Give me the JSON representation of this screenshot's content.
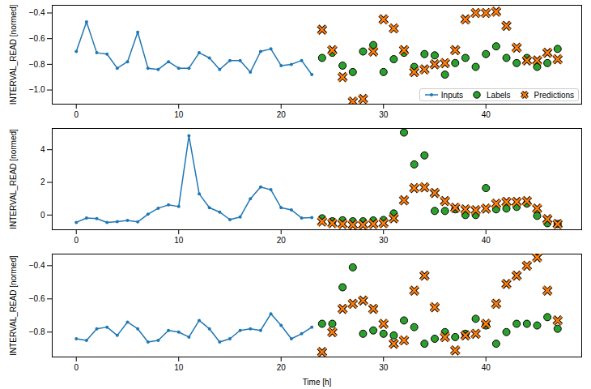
{
  "chart_data": [
    {
      "type": "line",
      "ylabel": "INTERVAL_READ [normed]",
      "x": [
        0,
        1,
        2,
        3,
        4,
        5,
        6,
        7,
        8,
        9,
        10,
        11,
        12,
        13,
        14,
        15,
        16,
        17,
        18,
        19,
        20,
        21,
        22,
        23,
        24,
        25,
        26,
        27,
        28,
        29,
        30,
        31,
        32,
        33,
        34,
        35,
        36,
        37,
        38,
        39,
        40,
        41,
        42,
        43,
        44,
        45,
        46,
        47
      ],
      "xlim": [
        -2.35,
        49.35
      ],
      "xticks": [
        0,
        10,
        20,
        30,
        40
      ],
      "ylim": [
        -1.11,
        -0.34
      ],
      "yticks": [
        {
          "value": -1.0,
          "label": "−1.0"
        },
        {
          "value": -0.8,
          "label": "−0.8"
        },
        {
          "value": -0.6,
          "label": "−0.6"
        },
        {
          "value": -0.4,
          "label": "−0.4"
        }
      ],
      "legend": "lower right",
      "series": [
        {
          "name": "Inputs",
          "type": "line",
          "color": "#1f77b4",
          "marker": "o",
          "line_style": "solid",
          "values": [
            -0.7,
            -0.47,
            -0.71,
            -0.72,
            -0.83,
            -0.78,
            -0.55,
            -0.83,
            -0.84,
            -0.78,
            -0.83,
            -0.83,
            -0.71,
            -0.75,
            -0.84,
            -0.77,
            -0.77,
            -0.86,
            -0.7,
            -0.68,
            -0.81,
            -0.8,
            -0.77,
            -0.88,
            null,
            null,
            null,
            null,
            null,
            null,
            null,
            null,
            null,
            null,
            null,
            null,
            null,
            null,
            null,
            null,
            null,
            null,
            null,
            null,
            null,
            null,
            null,
            null
          ]
        },
        {
          "name": "Labels",
          "type": "scatter",
          "color": "#2ca02c",
          "marker": "o",
          "values": [
            null,
            null,
            null,
            null,
            null,
            null,
            null,
            null,
            null,
            null,
            null,
            null,
            null,
            null,
            null,
            null,
            null,
            null,
            null,
            null,
            null,
            null,
            null,
            null,
            -0.75,
            -0.71,
            -0.81,
            -0.86,
            -0.7,
            -0.65,
            -0.86,
            -0.76,
            -0.71,
            -0.82,
            -0.72,
            -0.73,
            -0.88,
            -0.79,
            -0.75,
            -0.82,
            -0.72,
            -0.66,
            -0.75,
            -0.79,
            -0.75,
            -0.82,
            -0.79,
            -0.68
          ]
        },
        {
          "name": "Predictions",
          "type": "scatter",
          "color": "#ff7f0e",
          "marker": "X",
          "values": [
            null,
            null,
            null,
            null,
            null,
            null,
            null,
            null,
            null,
            null,
            null,
            null,
            null,
            null,
            null,
            null,
            null,
            null,
            null,
            null,
            null,
            null,
            null,
            null,
            -0.53,
            -0.69,
            -0.9,
            -1.09,
            -1.07,
            -0.7,
            -0.45,
            -0.52,
            -0.69,
            -0.86,
            -0.84,
            -0.8,
            -0.79,
            -0.69,
            -0.45,
            -0.4,
            -0.4,
            -0.39,
            -0.5,
            -0.67,
            -0.77,
            -0.77,
            -0.71,
            -0.76
          ]
        }
      ]
    },
    {
      "type": "line",
      "ylabel": "INTERVAL_READ [normed]",
      "x": [
        0,
        1,
        2,
        3,
        4,
        5,
        6,
        7,
        8,
        9,
        10,
        11,
        12,
        13,
        14,
        15,
        16,
        17,
        18,
        19,
        20,
        21,
        22,
        23,
        24,
        25,
        26,
        27,
        28,
        29,
        30,
        31,
        32,
        33,
        34,
        35,
        36,
        37,
        38,
        39,
        40,
        41,
        42,
        43,
        44,
        45,
        46,
        47
      ],
      "xlim": [
        -2.35,
        49.35
      ],
      "xticks": [
        0,
        10,
        20,
        30,
        40
      ],
      "ylim": [
        -0.9,
        5.3
      ],
      "yticks": [
        0,
        2,
        4
      ],
      "series": [
        {
          "name": "Inputs",
          "type": "line",
          "color": "#1f77b4",
          "marker": "o",
          "line_style": "solid",
          "values": [
            -0.45,
            -0.18,
            -0.22,
            -0.45,
            -0.4,
            -0.33,
            -0.42,
            0.05,
            0.42,
            0.62,
            0.52,
            4.85,
            1.3,
            0.45,
            0.18,
            -0.28,
            -0.12,
            1.0,
            1.72,
            1.55,
            0.45,
            0.32,
            -0.18,
            -0.15,
            null,
            null,
            null,
            null,
            null,
            null,
            null,
            null,
            null,
            null,
            null,
            null,
            null,
            null,
            null,
            null,
            null,
            null,
            null,
            null,
            null,
            null,
            null,
            null
          ]
        },
        {
          "name": "Labels",
          "type": "scatter",
          "color": "#2ca02c",
          "marker": "o",
          "values": [
            null,
            null,
            null,
            null,
            null,
            null,
            null,
            null,
            null,
            null,
            null,
            null,
            null,
            null,
            null,
            null,
            null,
            null,
            null,
            null,
            null,
            null,
            null,
            null,
            -0.2,
            -0.38,
            -0.32,
            -0.38,
            -0.38,
            -0.33,
            -0.3,
            0.1,
            5.05,
            3.1,
            3.65,
            0.25,
            0.25,
            0.35,
            0.0,
            0.0,
            1.65,
            0.35,
            0.4,
            0.5,
            0.7,
            -0.05,
            -0.5,
            -0.55
          ]
        },
        {
          "name": "Predictions",
          "type": "scatter",
          "color": "#ff7f0e",
          "marker": "X",
          "values": [
            null,
            null,
            null,
            null,
            null,
            null,
            null,
            null,
            null,
            null,
            null,
            null,
            null,
            null,
            null,
            null,
            null,
            null,
            null,
            null,
            null,
            null,
            null,
            null,
            -0.4,
            -0.5,
            -0.55,
            -0.6,
            -0.6,
            -0.55,
            -0.5,
            -0.2,
            0.9,
            1.65,
            1.7,
            1.35,
            0.85,
            0.45,
            0.35,
            0.3,
            0.4,
            0.7,
            0.8,
            0.8,
            0.85,
            0.4,
            -0.25,
            -0.55
          ]
        }
      ]
    },
    {
      "type": "line",
      "ylabel": "INTERVAL_READ [normed]",
      "xlabel": "Time [h]",
      "x": [
        0,
        1,
        2,
        3,
        4,
        5,
        6,
        7,
        8,
        9,
        10,
        11,
        12,
        13,
        14,
        15,
        16,
        17,
        18,
        19,
        20,
        21,
        22,
        23,
        24,
        25,
        26,
        27,
        28,
        29,
        30,
        31,
        32,
        33,
        34,
        35,
        36,
        37,
        38,
        39,
        40,
        41,
        42,
        43,
        44,
        45,
        46,
        47
      ],
      "xlim": [
        -2.35,
        49.35
      ],
      "xticks": [
        0,
        10,
        20,
        30,
        40
      ],
      "ylim": [
        -0.95,
        -0.33
      ],
      "yticks": [
        {
          "value": -0.8,
          "label": "−0.8"
        },
        {
          "value": -0.6,
          "label": "−0.6"
        },
        {
          "value": -0.4,
          "label": "−0.4"
        }
      ],
      "series": [
        {
          "name": "Inputs",
          "type": "line",
          "color": "#1f77b4",
          "marker": "o",
          "line_style": "solid",
          "values": [
            -0.84,
            -0.85,
            -0.78,
            -0.77,
            -0.82,
            -0.74,
            -0.78,
            -0.86,
            -0.85,
            -0.79,
            -0.8,
            -0.83,
            -0.73,
            -0.78,
            -0.86,
            -0.84,
            -0.79,
            -0.78,
            -0.79,
            -0.69,
            -0.76,
            -0.84,
            -0.81,
            -0.77,
            null,
            null,
            null,
            null,
            null,
            null,
            null,
            null,
            null,
            null,
            null,
            null,
            null,
            null,
            null,
            null,
            null,
            null,
            null,
            null,
            null,
            null,
            null,
            null
          ]
        },
        {
          "name": "Labels",
          "type": "scatter",
          "color": "#2ca02c",
          "marker": "o",
          "values": [
            null,
            null,
            null,
            null,
            null,
            null,
            null,
            null,
            null,
            null,
            null,
            null,
            null,
            null,
            null,
            null,
            null,
            null,
            null,
            null,
            null,
            null,
            null,
            null,
            -0.75,
            -0.75,
            -0.53,
            -0.41,
            -0.81,
            -0.79,
            -0.81,
            -0.82,
            -0.73,
            -0.77,
            -0.87,
            -0.84,
            -0.8,
            -0.83,
            -0.81,
            -0.72,
            -0.76,
            -0.87,
            -0.8,
            -0.75,
            -0.75,
            -0.76,
            -0.71,
            -0.78
          ]
        },
        {
          "name": "Predictions",
          "type": "scatter",
          "color": "#ff7f0e",
          "marker": "X",
          "values": [
            null,
            null,
            null,
            null,
            null,
            null,
            null,
            null,
            null,
            null,
            null,
            null,
            null,
            null,
            null,
            null,
            null,
            null,
            null,
            null,
            null,
            null,
            null,
            null,
            -0.92,
            -0.8,
            -0.66,
            -0.63,
            -0.61,
            -0.66,
            -0.75,
            -0.87,
            -0.85,
            -0.55,
            -0.46,
            -0.65,
            -0.83,
            -0.91,
            -0.82,
            -0.81,
            -0.75,
            -0.63,
            -0.51,
            -0.46,
            -0.4,
            -0.35,
            -0.55,
            -0.73
          ]
        }
      ]
    }
  ]
}
